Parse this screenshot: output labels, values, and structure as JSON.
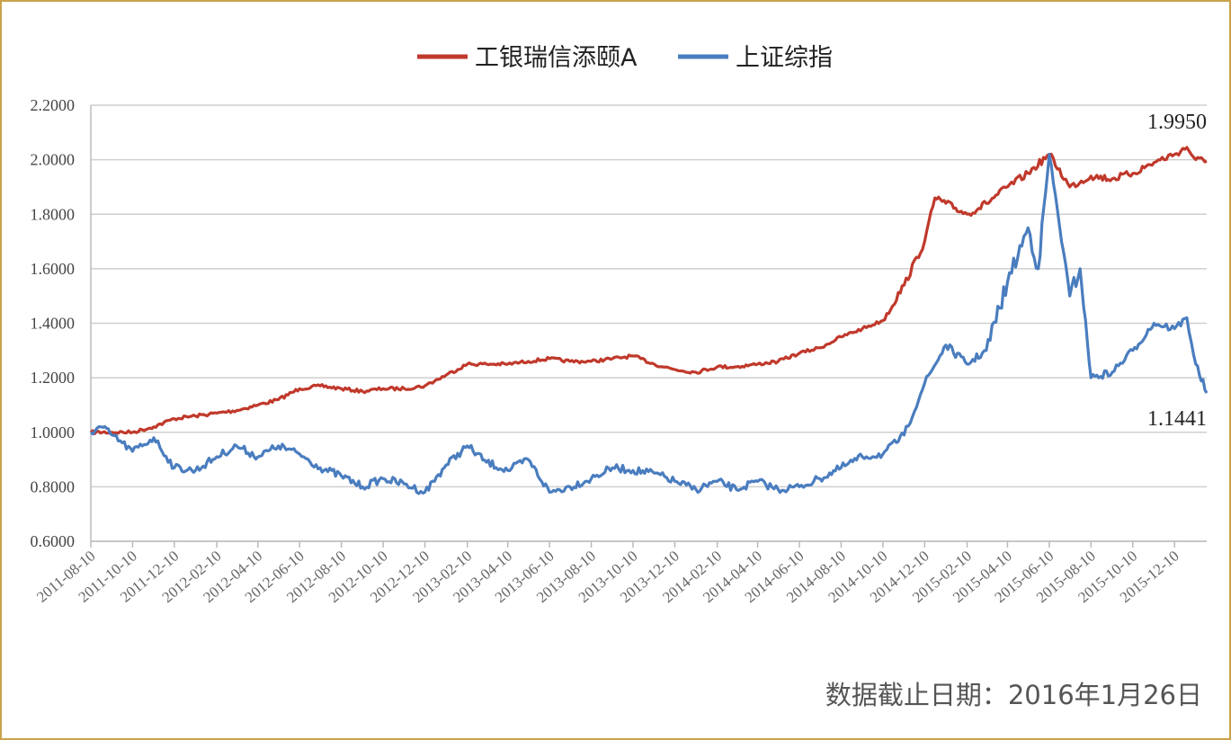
{
  "chart_data": {
    "type": "line",
    "yticks": [
      "2.2000",
      "2.0000",
      "1.8000",
      "1.6000",
      "1.4000",
      "1.2000",
      "1.0000",
      "0.8000",
      "0.6000"
    ],
    "ylim": [
      0.6,
      2.2
    ],
    "xticks": [
      "2011-08-10",
      "2011-10-10",
      "2011-12-10",
      "2012-02-10",
      "2012-04-10",
      "2012-06-10",
      "2012-08-10",
      "2012-10-10",
      "2012-12-10",
      "2013-02-10",
      "2013-04-10",
      "2013-06-10",
      "2013-08-10",
      "2013-10-10",
      "2013-12-10",
      "2014-02-10",
      "2014-04-10",
      "2014-06-10",
      "2014-08-10",
      "2014-10-10",
      "2014-12-10",
      "2015-02-10",
      "2015-04-10",
      "2015-06-10",
      "2015-08-10",
      "2015-10-10",
      "2015-12-10"
    ],
    "x_end": "2016-01-26",
    "grid": true,
    "legend_position": "top-center",
    "series": [
      {
        "name": "工银瑞信添颐A",
        "color": "#c0392b",
        "points": [
          [
            "2011-08-10",
            1.0
          ],
          [
            "2011-09-10",
            1.0
          ],
          [
            "2011-10-10",
            1.0
          ],
          [
            "2011-11-10",
            1.02
          ],
          [
            "2011-12-10",
            1.05
          ],
          [
            "2012-01-10",
            1.06
          ],
          [
            "2012-02-10",
            1.07
          ],
          [
            "2012-03-10",
            1.08
          ],
          [
            "2012-04-10",
            1.1
          ],
          [
            "2012-05-10",
            1.12
          ],
          [
            "2012-06-10",
            1.16
          ],
          [
            "2012-07-10",
            1.17
          ],
          [
            "2012-08-10",
            1.16
          ],
          [
            "2012-09-10",
            1.15
          ],
          [
            "2012-10-10",
            1.16
          ],
          [
            "2012-11-10",
            1.16
          ],
          [
            "2012-12-10",
            1.17
          ],
          [
            "2013-01-10",
            1.21
          ],
          [
            "2013-02-10",
            1.25
          ],
          [
            "2013-03-10",
            1.25
          ],
          [
            "2013-04-10",
            1.25
          ],
          [
            "2013-05-10",
            1.26
          ],
          [
            "2013-06-10",
            1.27
          ],
          [
            "2013-07-10",
            1.26
          ],
          [
            "2013-08-10",
            1.26
          ],
          [
            "2013-09-10",
            1.27
          ],
          [
            "2013-10-10",
            1.28
          ],
          [
            "2013-11-10",
            1.25
          ],
          [
            "2013-12-10",
            1.23
          ],
          [
            "2014-01-10",
            1.22
          ],
          [
            "2014-02-10",
            1.24
          ],
          [
            "2014-03-10",
            1.24
          ],
          [
            "2014-04-10",
            1.25
          ],
          [
            "2014-05-10",
            1.26
          ],
          [
            "2014-06-10",
            1.29
          ],
          [
            "2014-07-10",
            1.31
          ],
          [
            "2014-08-10",
            1.35
          ],
          [
            "2014-09-10",
            1.38
          ],
          [
            "2014-10-10",
            1.41
          ],
          [
            "2014-11-10",
            1.54
          ],
          [
            "2014-12-10",
            1.7
          ],
          [
            "2014-12-25",
            1.86
          ],
          [
            "2015-01-10",
            1.84
          ],
          [
            "2015-02-10",
            1.8
          ],
          [
            "2015-03-10",
            1.84
          ],
          [
            "2015-04-10",
            1.9
          ],
          [
            "2015-05-10",
            1.95
          ],
          [
            "2015-06-10",
            2.02
          ],
          [
            "2015-07-10",
            1.9
          ],
          [
            "2015-08-10",
            1.94
          ],
          [
            "2015-09-10",
            1.93
          ],
          [
            "2015-10-10",
            1.95
          ],
          [
            "2015-11-10",
            1.99
          ],
          [
            "2015-12-10",
            2.02
          ],
          [
            "2015-12-28",
            2.045
          ],
          [
            "2016-01-10",
            2.0
          ],
          [
            "2016-01-26",
            1.995
          ]
        ]
      },
      {
        "name": "上证综指",
        "color": "#4a7dbf",
        "points": [
          [
            "2011-08-10",
            1.0
          ],
          [
            "2011-08-25",
            1.02
          ],
          [
            "2011-09-10",
            0.99
          ],
          [
            "2011-10-10",
            0.93
          ],
          [
            "2011-11-10",
            0.98
          ],
          [
            "2011-12-10",
            0.87
          ],
          [
            "2012-01-10",
            0.86
          ],
          [
            "2012-02-10",
            0.91
          ],
          [
            "2012-03-10",
            0.95
          ],
          [
            "2012-04-10",
            0.91
          ],
          [
            "2012-05-10",
            0.95
          ],
          [
            "2012-06-10",
            0.92
          ],
          [
            "2012-07-10",
            0.87
          ],
          [
            "2012-08-10",
            0.84
          ],
          [
            "2012-09-10",
            0.8
          ],
          [
            "2012-10-10",
            0.83
          ],
          [
            "2012-11-10",
            0.81
          ],
          [
            "2012-12-10",
            0.78
          ],
          [
            "2013-01-10",
            0.88
          ],
          [
            "2013-02-10",
            0.95
          ],
          [
            "2013-03-10",
            0.89
          ],
          [
            "2013-04-10",
            0.86
          ],
          [
            "2013-05-10",
            0.9
          ],
          [
            "2013-06-10",
            0.78
          ],
          [
            "2013-07-10",
            0.8
          ],
          [
            "2013-08-10",
            0.83
          ],
          [
            "2013-09-10",
            0.87
          ],
          [
            "2013-10-10",
            0.86
          ],
          [
            "2013-11-10",
            0.85
          ],
          [
            "2013-12-10",
            0.82
          ],
          [
            "2014-01-10",
            0.79
          ],
          [
            "2014-02-10",
            0.82
          ],
          [
            "2014-03-10",
            0.79
          ],
          [
            "2014-04-10",
            0.82
          ],
          [
            "2014-05-10",
            0.79
          ],
          [
            "2014-06-10",
            0.8
          ],
          [
            "2014-07-10",
            0.83
          ],
          [
            "2014-08-10",
            0.87
          ],
          [
            "2014-09-10",
            0.91
          ],
          [
            "2014-10-10",
            0.92
          ],
          [
            "2014-11-10",
            0.99
          ],
          [
            "2014-12-10",
            1.18
          ],
          [
            "2015-01-10",
            1.32
          ],
          [
            "2015-02-10",
            1.25
          ],
          [
            "2015-03-10",
            1.3
          ],
          [
            "2015-04-10",
            1.55
          ],
          [
            "2015-05-10",
            1.75
          ],
          [
            "2015-05-25",
            1.6
          ],
          [
            "2015-06-10",
            2.02
          ],
          [
            "2015-07-10",
            1.5
          ],
          [
            "2015-07-25",
            1.6
          ],
          [
            "2015-08-10",
            1.2
          ],
          [
            "2015-09-10",
            1.22
          ],
          [
            "2015-10-10",
            1.3
          ],
          [
            "2015-11-10",
            1.4
          ],
          [
            "2015-12-10",
            1.38
          ],
          [
            "2015-12-28",
            1.42
          ],
          [
            "2016-01-10",
            1.25
          ],
          [
            "2016-01-26",
            1.144
          ]
        ]
      }
    ],
    "annotations": [
      {
        "text": "1.9950",
        "series": 0
      },
      {
        "text": "1.1441",
        "series": 1
      }
    ]
  },
  "footnote": "数据截止日期：2016年1月26日"
}
